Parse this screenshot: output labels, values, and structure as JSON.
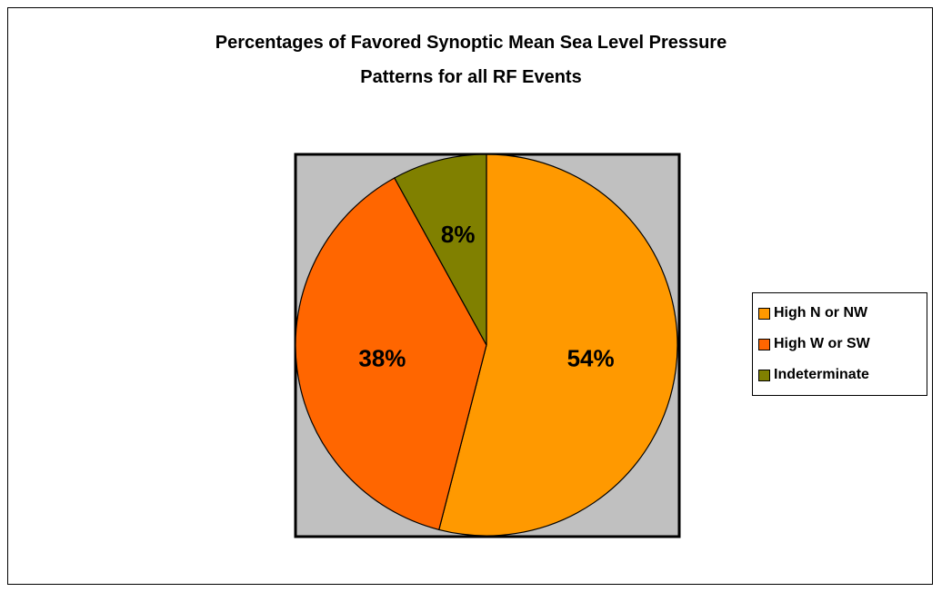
{
  "chart_data": {
    "type": "pie",
    "title": "Percentages of Favored Synoptic Mean Sea Level Pressure Patterns for all RF Events",
    "title_lines": [
      "Percentages of Favored Synoptic Mean Sea Level Pressure",
      "Patterns for all RF Events"
    ],
    "categories": [
      "High N or NW",
      "High W or SW",
      "Indeterminate"
    ],
    "values": [
      54,
      38,
      8
    ],
    "data_labels": [
      "54%",
      "38%",
      "8%"
    ],
    "colors": [
      "#ff9900",
      "#ff6600",
      "#808000"
    ],
    "plot_area_background": "#c0c0c0",
    "legend_placement": "right"
  }
}
